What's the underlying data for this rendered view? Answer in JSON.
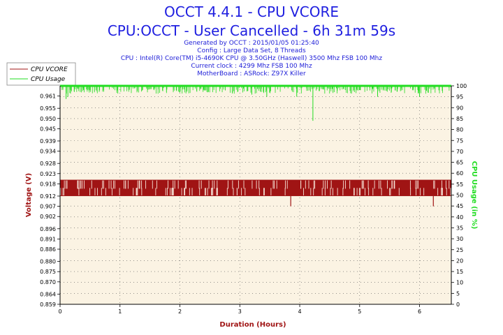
{
  "header": {
    "title1": "OCCT 4.4.1 - CPU VCORE",
    "title2": "CPU:OCCT - User Cancelled - 6h 31m 59s",
    "info": [
      "Generated by OCCT : 2015/01/05 01:25:40",
      "Config : Large Data Set, 8 Threads",
      "CPU : Intel(R) Core(TM) i5-4690K CPU @ 3.50GHz (Haswell) 3500 Mhz FSB 100 Mhz",
      "Current clock : 4299 Mhz FSB 100 Mhz",
      "MotherBoard : ASRock: Z97X Killer"
    ]
  },
  "colors": {
    "title": "#1f1fe0",
    "vcore": "#a01414",
    "usage": "#22dd22",
    "plot_bg": "#fbf3e3",
    "grid": "#555555"
  },
  "chart_data": {
    "type": "line",
    "xlabel": "Duration (Hours)",
    "ylabel_left": "Voltage (V)",
    "ylabel_right": "CPU Usage (in %)",
    "xlim": [
      0,
      6.53
    ],
    "x_ticks": [
      0,
      1,
      2,
      3,
      4,
      5,
      6
    ],
    "ylim_left": [
      0.859,
      0.966
    ],
    "y_ticks_left": [
      "0.859",
      "0.864",
      "0.870",
      "0.875",
      "0.880",
      "0.886",
      "0.891",
      "0.896",
      "0.902",
      "0.907",
      "0.912",
      "0.918",
      "0.923",
      "0.928",
      "0.934",
      "0.939",
      "0.945",
      "0.950",
      "0.955",
      "0.961"
    ],
    "ylim_right": [
      0,
      100
    ],
    "y_ticks_right": [
      0,
      5,
      10,
      15,
      20,
      25,
      30,
      35,
      40,
      45,
      50,
      55,
      60,
      65,
      70,
      75,
      80,
      85,
      90,
      95,
      100
    ],
    "legend": {
      "placement": "top-left",
      "entries": [
        "CPU VCORE",
        "CPU Usage"
      ]
    },
    "series": [
      {
        "name": "CPU VCORE",
        "axis": "left",
        "levels": [
          0.912,
          0.92
        ],
        "typical": "oscillates between 0.912 and 0.920",
        "dips": [
          {
            "x": 3.85,
            "y": 0.907
          },
          {
            "x": 6.23,
            "y": 0.907
          }
        ]
      },
      {
        "name": "CPU Usage",
        "axis": "right",
        "typical": 100,
        "dips": [
          {
            "x": 0.1,
            "y": 94
          },
          {
            "x": 0.13,
            "y": 95
          },
          {
            "x": 2.0,
            "y": 97
          },
          {
            "x": 3.2,
            "y": 96
          },
          {
            "x": 3.45,
            "y": 95
          },
          {
            "x": 3.95,
            "y": 95
          },
          {
            "x": 4.22,
            "y": 84
          },
          {
            "x": 5.3,
            "y": 95
          },
          {
            "x": 6.0,
            "y": 95
          }
        ]
      }
    ]
  }
}
